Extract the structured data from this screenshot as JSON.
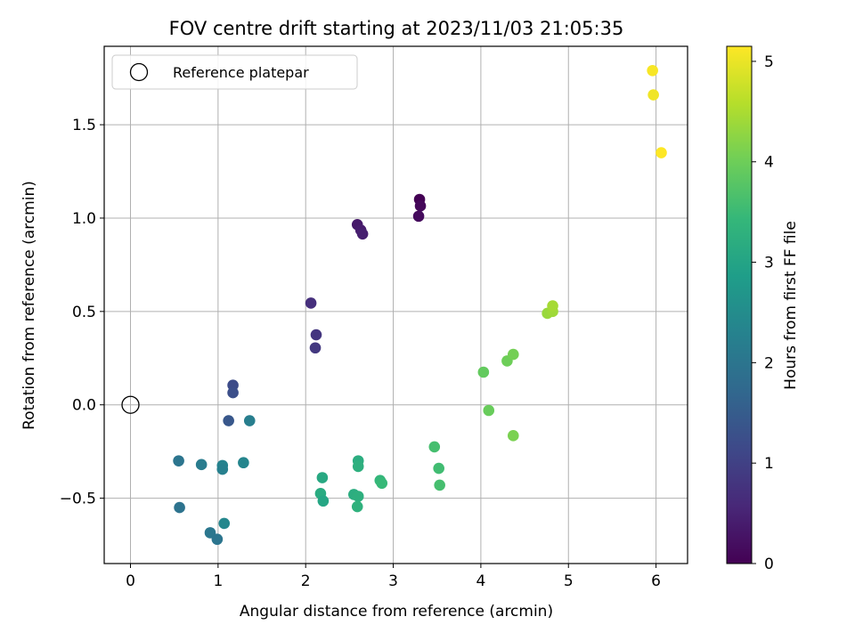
{
  "chart_data": {
    "type": "scatter",
    "title": "FOV centre drift starting at 2023/11/03 21:05:35",
    "xlabel": "Angular distance from reference (arcmin)",
    "ylabel": "Rotation from reference (arcmin)",
    "colorbar_label": "Hours from first FF file",
    "colormap": "viridis",
    "xlim": [
      -0.3,
      6.36
    ],
    "ylim": [
      -0.85,
      1.92
    ],
    "clim": [
      0,
      5.15
    ],
    "xticks": [
      0,
      1,
      2,
      3,
      4,
      5,
      6
    ],
    "xtick_labels": [
      "0",
      "1",
      "2",
      "3",
      "4",
      "5",
      "6"
    ],
    "yticks": [
      -0.5,
      0.0,
      0.5,
      1.0,
      1.5
    ],
    "ytick_labels": [
      "−0.5",
      "0.0",
      "0.5",
      "1.0",
      "1.5"
    ],
    "cticks": [
      0,
      1,
      2,
      3,
      4,
      5
    ],
    "ctick_labels": [
      "0",
      "1",
      "2",
      "3",
      "4",
      "5"
    ],
    "grid": true,
    "legend": {
      "location": "upper-left",
      "entries": [
        "Reference platepar"
      ]
    },
    "reference_point": {
      "x": 0,
      "y": 0
    },
    "points": [
      {
        "x": 3.3,
        "y": 1.1,
        "c": 0.0
      },
      {
        "x": 3.31,
        "y": 1.065,
        "c": 0.1
      },
      {
        "x": 3.29,
        "y": 1.01,
        "c": 0.15
      },
      {
        "x": 2.59,
        "y": 0.965,
        "c": 0.35
      },
      {
        "x": 2.63,
        "y": 0.935,
        "c": 0.4
      },
      {
        "x": 2.65,
        "y": 0.915,
        "c": 0.45
      },
      {
        "x": 2.06,
        "y": 0.545,
        "c": 0.7
      },
      {
        "x": 2.12,
        "y": 0.375,
        "c": 0.8
      },
      {
        "x": 2.11,
        "y": 0.305,
        "c": 0.85
      },
      {
        "x": 1.17,
        "y": 0.105,
        "c": 1.2
      },
      {
        "x": 1.17,
        "y": 0.065,
        "c": 1.25
      },
      {
        "x": 1.12,
        "y": -0.085,
        "c": 1.4
      },
      {
        "x": 1.36,
        "y": -0.085,
        "c": 2.2
      },
      {
        "x": 0.55,
        "y": -0.3,
        "c": 2.0
      },
      {
        "x": 0.81,
        "y": -0.32,
        "c": 2.15
      },
      {
        "x": 1.05,
        "y": -0.325,
        "c": 2.3
      },
      {
        "x": 1.05,
        "y": -0.345,
        "c": 2.25
      },
      {
        "x": 1.29,
        "y": -0.31,
        "c": 2.35
      },
      {
        "x": 0.56,
        "y": -0.55,
        "c": 1.95
      },
      {
        "x": 0.91,
        "y": -0.685,
        "c": 2.05
      },
      {
        "x": 0.99,
        "y": -0.72,
        "c": 2.0
      },
      {
        "x": 1.07,
        "y": -0.635,
        "c": 2.4
      },
      {
        "x": 2.19,
        "y": -0.39,
        "c": 3.1
      },
      {
        "x": 2.17,
        "y": -0.475,
        "c": 3.15
      },
      {
        "x": 2.2,
        "y": -0.515,
        "c": 3.05
      },
      {
        "x": 2.6,
        "y": -0.3,
        "c": 3.2
      },
      {
        "x": 2.6,
        "y": -0.33,
        "c": 3.25
      },
      {
        "x": 2.55,
        "y": -0.48,
        "c": 3.2
      },
      {
        "x": 2.6,
        "y": -0.49,
        "c": 3.25
      },
      {
        "x": 2.59,
        "y": -0.545,
        "c": 3.3
      },
      {
        "x": 2.85,
        "y": -0.405,
        "c": 3.4
      },
      {
        "x": 2.87,
        "y": -0.42,
        "c": 3.45
      },
      {
        "x": 3.47,
        "y": -0.225,
        "c": 3.6
      },
      {
        "x": 3.52,
        "y": -0.34,
        "c": 3.55
      },
      {
        "x": 3.53,
        "y": -0.43,
        "c": 3.6
      },
      {
        "x": 4.03,
        "y": 0.175,
        "c": 3.9
      },
      {
        "x": 4.09,
        "y": -0.03,
        "c": 3.95
      },
      {
        "x": 4.3,
        "y": 0.235,
        "c": 4.0
      },
      {
        "x": 4.37,
        "y": 0.27,
        "c": 4.05
      },
      {
        "x": 4.37,
        "y": -0.165,
        "c": 4.1
      },
      {
        "x": 4.76,
        "y": 0.49,
        "c": 4.35
      },
      {
        "x": 4.82,
        "y": 0.5,
        "c": 4.4
      },
      {
        "x": 4.82,
        "y": 0.53,
        "c": 4.45
      },
      {
        "x": 5.96,
        "y": 1.79,
        "c": 5.1
      },
      {
        "x": 5.97,
        "y": 1.66,
        "c": 5.05
      },
      {
        "x": 6.06,
        "y": 1.35,
        "c": 5.15
      }
    ]
  }
}
